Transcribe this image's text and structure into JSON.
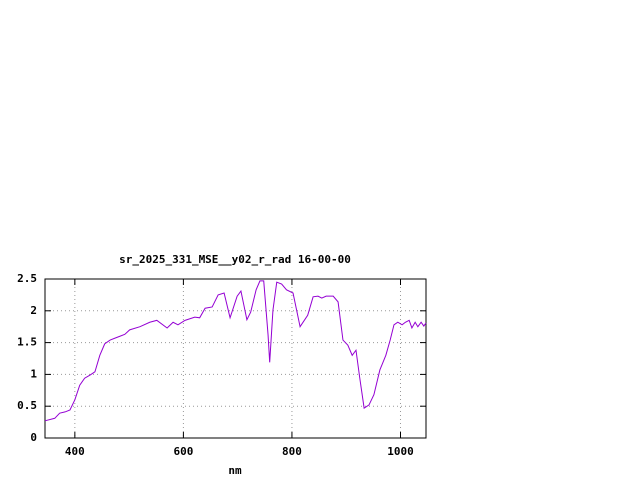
{
  "chart_data": {
    "type": "line",
    "title": "sr_2025_331_MSE__y02_r_rad 16-00-00",
    "x_label": "nm",
    "x": [
      345,
      363,
      372,
      382,
      391,
      400,
      409,
      418,
      428,
      437,
      446,
      455,
      465,
      474,
      483,
      492,
      501,
      520,
      538,
      551,
      570,
      581,
      590,
      603,
      621,
      630,
      640,
      653,
      664,
      675,
      686,
      699,
      706,
      717,
      724,
      734,
      741,
      748,
      756,
      759,
      765,
      772,
      781,
      790,
      802,
      815,
      829,
      839,
      848,
      855,
      863,
      876,
      885,
      894,
      903,
      911,
      918,
      925,
      933,
      942,
      951,
      962,
      973,
      981,
      988,
      995,
      1003,
      1009,
      1016,
      1021,
      1027,
      1032,
      1038,
      1043,
      1047
    ],
    "series": [
      {
        "name": "sr_2025_331_MSE__y02_r_rad 16-00-00",
        "color": "#9400d3",
        "values": [
          0.27,
          0.31,
          0.39,
          0.41,
          0.44,
          0.6,
          0.83,
          0.94,
          0.99,
          1.04,
          1.3,
          1.48,
          1.54,
          1.57,
          1.6,
          1.63,
          1.7,
          1.75,
          1.82,
          1.85,
          1.73,
          1.82,
          1.78,
          1.85,
          1.9,
          1.89,
          2.04,
          2.06,
          2.25,
          2.28,
          1.89,
          2.23,
          2.31,
          1.86,
          1.98,
          2.33,
          2.47,
          2.47,
          1.62,
          1.19,
          2.01,
          2.45,
          2.42,
          2.33,
          2.28,
          1.75,
          1.93,
          2.22,
          2.23,
          2.2,
          2.23,
          2.23,
          2.14,
          1.54,
          1.46,
          1.3,
          1.38,
          0.94,
          0.47,
          0.52,
          0.68,
          1.07,
          1.3,
          1.54,
          1.78,
          1.82,
          1.78,
          1.82,
          1.85,
          1.73,
          1.82,
          1.75,
          1.82,
          1.76,
          1.81
        ]
      }
    ],
    "xlim": [
      345,
      1047
    ],
    "xticks": [
      400,
      600,
      800,
      1000
    ],
    "ylim": [
      0,
      2.5
    ],
    "yticks": [
      0,
      0.5,
      1,
      1.5,
      2,
      2.5
    ],
    "grid": true
  }
}
